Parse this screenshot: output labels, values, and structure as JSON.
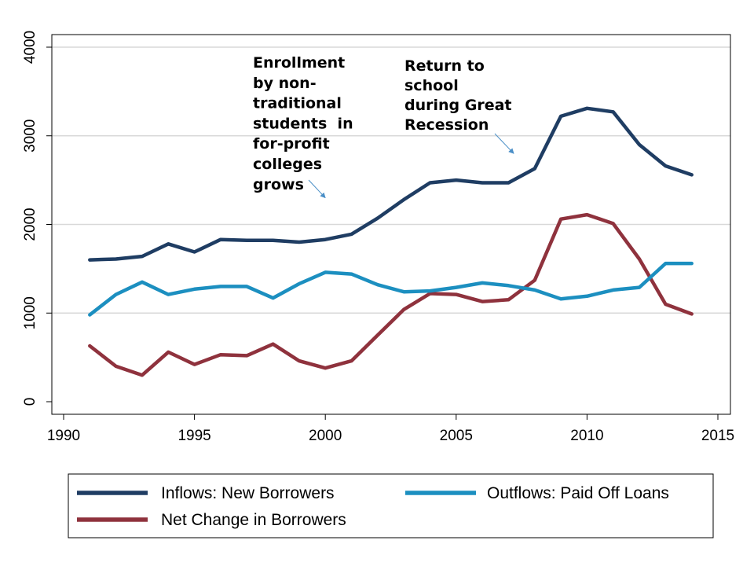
{
  "chart_data": {
    "type": "line",
    "title": "",
    "xlabel": "",
    "ylabel": "",
    "xlim": [
      1990,
      2015
    ],
    "ylim": [
      0,
      4000
    ],
    "x_ticks": [
      1990,
      1995,
      2000,
      2005,
      2010,
      2015
    ],
    "y_ticks": [
      0,
      1000,
      2000,
      3000,
      4000
    ],
    "grid": "horizontal",
    "legend_position": "bottom",
    "x": [
      1991,
      1992,
      1993,
      1994,
      1995,
      1996,
      1997,
      1998,
      1999,
      2000,
      2001,
      2002,
      2003,
      2004,
      2005,
      2006,
      2007,
      2008,
      2009,
      2010,
      2011,
      2012,
      2013,
      2014
    ],
    "series": [
      {
        "name": "Inflows: New Borrowers",
        "color": "#1f3d63",
        "values": [
          1600,
          1610,
          1640,
          1780,
          1690,
          1830,
          1820,
          1820,
          1800,
          1830,
          1890,
          2070,
          2280,
          2470,
          2500,
          2470,
          2470,
          2630,
          3220,
          3310,
          3270,
          2900,
          2660,
          2560
        ]
      },
      {
        "name": "Outflows: Paid Off Loans",
        "color": "#1c8fc0",
        "values": [
          980,
          1210,
          1350,
          1210,
          1270,
          1300,
          1300,
          1170,
          1330,
          1460,
          1440,
          1320,
          1240,
          1250,
          1290,
          1340,
          1310,
          1260,
          1160,
          1190,
          1260,
          1290,
          1560,
          1560
        ]
      },
      {
        "name": "Net Change in Borrowers",
        "color": "#8f323d",
        "values": [
          630,
          400,
          300,
          560,
          420,
          530,
          520,
          650,
          460,
          380,
          460,
          750,
          1040,
          1220,
          1210,
          1130,
          1150,
          1370,
          2060,
          2110,
          2010,
          1610,
          1100,
          990
        ]
      }
    ],
    "annotations": [
      {
        "lines": [
          "Enrollment",
          "by non-",
          "traditional",
          "students  in",
          "for-profit",
          "colleges",
          "grows"
        ],
        "arrow_to": [
          2000,
          2300
        ]
      },
      {
        "lines": [
          "Return to",
          "school",
          "during Great",
          "Recession"
        ],
        "arrow_to": [
          2007.2,
          2800
        ]
      }
    ]
  }
}
